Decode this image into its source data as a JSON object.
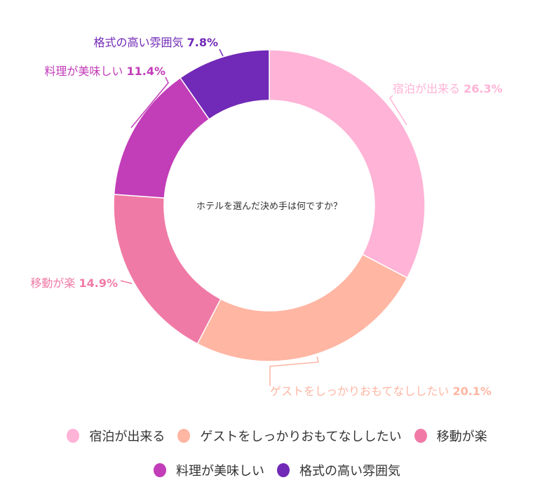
{
  "chart_data": {
    "type": "pie",
    "variant": "donut",
    "center_text": "ホテルを選んだ決め手は何ですか？",
    "categories": [
      "宿泊が出来る",
      "ゲストをしっかりおもてなししたい",
      "移動が楽",
      "料理が美味しい",
      "格式の高い雰囲気"
    ],
    "values": [
      26.3,
      20.1,
      14.9,
      11.4,
      7.8
    ],
    "value_labels": [
      "26.3%",
      "20.1%",
      "14.9%",
      "11.4%",
      "7.8%"
    ],
    "colors": [
      "#FFB3D6",
      "#FFB6A3",
      "#F07AA6",
      "#C23DB8",
      "#7129B7"
    ],
    "legend_position": "bottom"
  }
}
